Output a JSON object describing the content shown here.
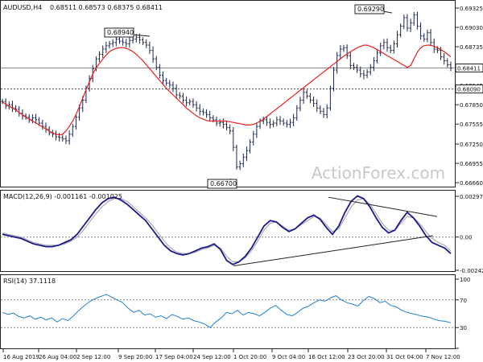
{
  "chart_data": [
    {
      "type": "candlestick",
      "panel": "price",
      "header": {
        "symbol": "AUDUSD,H4",
        "quote": "0.68511 0.68573 0.68375 0.68411"
      },
      "watermark": "ActionForex.com",
      "ylim": [
        0.666,
        0.6935
      ],
      "y_ticks": [
        "0.69325",
        "0.69030",
        "0.68735",
        "0.68440",
        "0.68145",
        "0.67850",
        "0.67555",
        "0.67250",
        "0.66955",
        "0.66660"
      ],
      "last_price": "0.68411",
      "support_level": "0.68090",
      "annotations": [
        {
          "label": "0.68940",
          "at_date": "5 Sep 2019"
        },
        {
          "label": "0.66700",
          "at_date": "2 Oct 2019"
        },
        {
          "label": "0.69290",
          "at_date": "31 Oct 2019"
        }
      ],
      "ma_color": "#e8201c",
      "close_series": [
        0.679,
        0.6783,
        0.6785,
        0.678,
        0.6778,
        0.6772,
        0.6768,
        0.6766,
        0.6762,
        0.6765,
        0.6762,
        0.6757,
        0.6752,
        0.6748,
        0.6742,
        0.674,
        0.6736,
        0.6735,
        0.6733,
        0.673,
        0.674,
        0.6752,
        0.6766,
        0.678,
        0.6792,
        0.681,
        0.6825,
        0.684,
        0.6855,
        0.6862,
        0.687,
        0.6875,
        0.6878,
        0.688,
        0.6885,
        0.6882,
        0.688,
        0.6878,
        0.6883,
        0.6885,
        0.6888,
        0.6884,
        0.688,
        0.6876,
        0.6868,
        0.6855,
        0.6842,
        0.683,
        0.6822,
        0.6818,
        0.6815,
        0.681,
        0.68,
        0.6798,
        0.6792,
        0.6788,
        0.679,
        0.6785,
        0.678,
        0.6775,
        0.6773,
        0.677,
        0.6765,
        0.6762,
        0.6757,
        0.6758,
        0.6755,
        0.675,
        0.6745,
        0.672,
        0.669,
        0.6695,
        0.6705,
        0.6715,
        0.6728,
        0.674,
        0.6752,
        0.676,
        0.6762,
        0.6758,
        0.6755,
        0.6757,
        0.6762,
        0.676,
        0.6757,
        0.6755,
        0.6758,
        0.6765,
        0.678,
        0.6792,
        0.6804,
        0.6798,
        0.6792,
        0.6787,
        0.678,
        0.6775,
        0.677,
        0.678,
        0.681,
        0.6838,
        0.686,
        0.687,
        0.6872,
        0.686,
        0.6845,
        0.6842,
        0.6838,
        0.6832,
        0.683,
        0.6835,
        0.6842,
        0.6852,
        0.6864,
        0.6875,
        0.688,
        0.6872,
        0.6868,
        0.6878,
        0.6892,
        0.6905,
        0.6918,
        0.6902,
        0.691,
        0.6922,
        0.6905,
        0.689,
        0.6885,
        0.6895,
        0.688,
        0.687,
        0.6868,
        0.6858,
        0.6852,
        0.6846,
        0.6841
      ],
      "ma_series": [
        0.6789,
        0.6786,
        0.6783,
        0.678,
        0.6777,
        0.6773,
        0.677,
        0.6766,
        0.6763,
        0.676,
        0.6757,
        0.6754,
        0.6751,
        0.6748,
        0.6745,
        0.6742,
        0.674,
        0.6739,
        0.674,
        0.6745,
        0.6752,
        0.676,
        0.677,
        0.6782,
        0.6795,
        0.6808,
        0.682,
        0.6832,
        0.6841,
        0.6848,
        0.6855,
        0.6861,
        0.6866,
        0.6869,
        0.6871,
        0.6872,
        0.6872,
        0.6871,
        0.6869,
        0.6866,
        0.6862,
        0.6857,
        0.6852,
        0.6846,
        0.684,
        0.6834,
        0.6828,
        0.6822,
        0.6816,
        0.681,
        0.6805,
        0.68,
        0.6795,
        0.679,
        0.6785,
        0.678,
        0.6776,
        0.6772,
        0.6768,
        0.6765,
        0.6763,
        0.6761,
        0.676,
        0.676,
        0.676,
        0.676,
        0.676,
        0.676,
        0.6759,
        0.6758,
        0.6757,
        0.6756,
        0.6755,
        0.6754,
        0.6754,
        0.6755,
        0.6757,
        0.676,
        0.6763,
        0.6767,
        0.6771,
        0.6775,
        0.6779,
        0.6783,
        0.6787,
        0.6791,
        0.6795,
        0.6799,
        0.6803,
        0.6807,
        0.6811,
        0.6815,
        0.6819,
        0.6823,
        0.6827,
        0.6831,
        0.6835,
        0.6839,
        0.6843,
        0.6847,
        0.6851,
        0.6855,
        0.6859,
        0.6862,
        0.6866,
        0.6869,
        0.6872,
        0.6874,
        0.6876,
        0.6876,
        0.6874,
        0.6872,
        0.6869,
        0.6866,
        0.6863,
        0.686,
        0.6857,
        0.6854,
        0.6851,
        0.6848,
        0.6845,
        0.6842,
        0.6845,
        0.6855,
        0.6865,
        0.6872,
        0.6875,
        0.6876,
        0.6876,
        0.6874,
        0.6872,
        0.6869,
        0.6866,
        0.6862,
        0.6858
      ]
    },
    {
      "type": "line",
      "panel": "macd",
      "header": "MACD(12,26,9) -0.001161 -0.001025",
      "ylim": [
        -0.00242,
        0.00297
      ],
      "y_ticks": [
        "0.00297",
        "0.00",
        "-0.00242"
      ],
      "series": [
        {
          "role": "macd",
          "color": "#1a1a8c",
          "values": [
            0.0002,
            0.0001,
            0.0,
            -0.0001,
            -0.0003,
            -0.0005,
            -0.0006,
            -0.0007,
            -0.0007,
            -0.0006,
            -0.0004,
            -0.0002,
            0.0002,
            0.0008,
            0.0014,
            0.002,
            0.0025,
            0.0028,
            0.0029,
            0.0027,
            0.0024,
            0.002,
            0.0016,
            0.0012,
            0.0006,
            0.0,
            -0.0006,
            -0.001,
            -0.0012,
            -0.0013,
            -0.0012,
            -0.001,
            -0.0008,
            -0.0007,
            -0.0005,
            -0.0009,
            -0.0017,
            -0.002,
            -0.0018,
            -0.0014,
            -0.0008,
            0.0,
            0.0008,
            0.0012,
            0.0011,
            0.0007,
            0.0004,
            0.0006,
            0.001,
            0.0014,
            0.0016,
            0.0013,
            0.0007,
            0.0002,
            0.0008,
            0.0018,
            0.0026,
            0.003,
            0.0028,
            0.0022,
            0.0014,
            0.0007,
            0.0003,
            0.0005,
            0.0012,
            0.0018,
            0.0014,
            0.0008,
            0.0001,
            -0.0004,
            -0.0006,
            -0.0008,
            -0.0012
          ]
        },
        {
          "role": "signal",
          "color": "#aaaaaa",
          "values": [
            0.0003,
            0.0002,
            0.0001,
            0.0,
            -0.0002,
            -0.0004,
            -0.0005,
            -0.0006,
            -0.0006,
            -0.0006,
            -0.0005,
            -0.0003,
            0.0,
            0.0005,
            0.0011,
            0.0017,
            0.0022,
            0.0026,
            0.0028,
            0.0028,
            0.0026,
            0.0022,
            0.0018,
            0.0014,
            0.0009,
            0.0003,
            -0.0003,
            -0.0008,
            -0.0011,
            -0.0012,
            -0.0012,
            -0.0011,
            -0.0009,
            -0.0008,
            -0.0006,
            -0.0008,
            -0.0014,
            -0.0018,
            -0.0018,
            -0.0015,
            -0.001,
            -0.0003,
            0.0005,
            0.001,
            0.0011,
            0.0008,
            0.0005,
            0.0006,
            0.0009,
            0.0012,
            0.0015,
            0.0014,
            0.0009,
            0.0004,
            0.0006,
            0.0014,
            0.0022,
            0.0027,
            0.0028,
            0.0024,
            0.0017,
            0.001,
            0.0005,
            0.0005,
            0.001,
            0.0015,
            0.0014,
            0.001,
            0.0004,
            -0.0001,
            -0.0004,
            -0.0006,
            -0.001
          ]
        }
      ]
    },
    {
      "type": "line",
      "panel": "rsi",
      "header": "RSI(14) 37.1118",
      "ylim": [
        0,
        100
      ],
      "y_ticks": [
        "100",
        "70",
        "30",
        "0"
      ],
      "series": [
        {
          "role": "rsi",
          "color": "#1e7fd6",
          "values": [
            52,
            49,
            51,
            46,
            44,
            47,
            42,
            45,
            41,
            44,
            38,
            43,
            40,
            47,
            55,
            62,
            68,
            72,
            75,
            78,
            74,
            70,
            66,
            58,
            52,
            55,
            48,
            50,
            45,
            47,
            43,
            49,
            46,
            42,
            44,
            40,
            38,
            35,
            30,
            38,
            44,
            52,
            50,
            55,
            48,
            52,
            50,
            47,
            52,
            58,
            62,
            55,
            49,
            47,
            52,
            58,
            61,
            66,
            70,
            68,
            73,
            76,
            70,
            66,
            64,
            61,
            69,
            75,
            72,
            66,
            68,
            62,
            60,
            55,
            52,
            50,
            48,
            46,
            45,
            42,
            40,
            39,
            37
          ]
        }
      ]
    },
    {
      "type": "axis",
      "panel": "time",
      "x_labels": [
        "16 Aug 2019",
        "26 Aug 04:00",
        "2 Sep 12:00",
        "9 Sep 20:00",
        "17 Sep 04:00",
        "24 Sep 12:00",
        "1 Oct 20:00",
        "9 Oct 04:00",
        "16 Oct 12:00",
        "23 Oct 20:00",
        "31 Oct 04:00",
        "7 Nov 12:00"
      ]
    }
  ]
}
